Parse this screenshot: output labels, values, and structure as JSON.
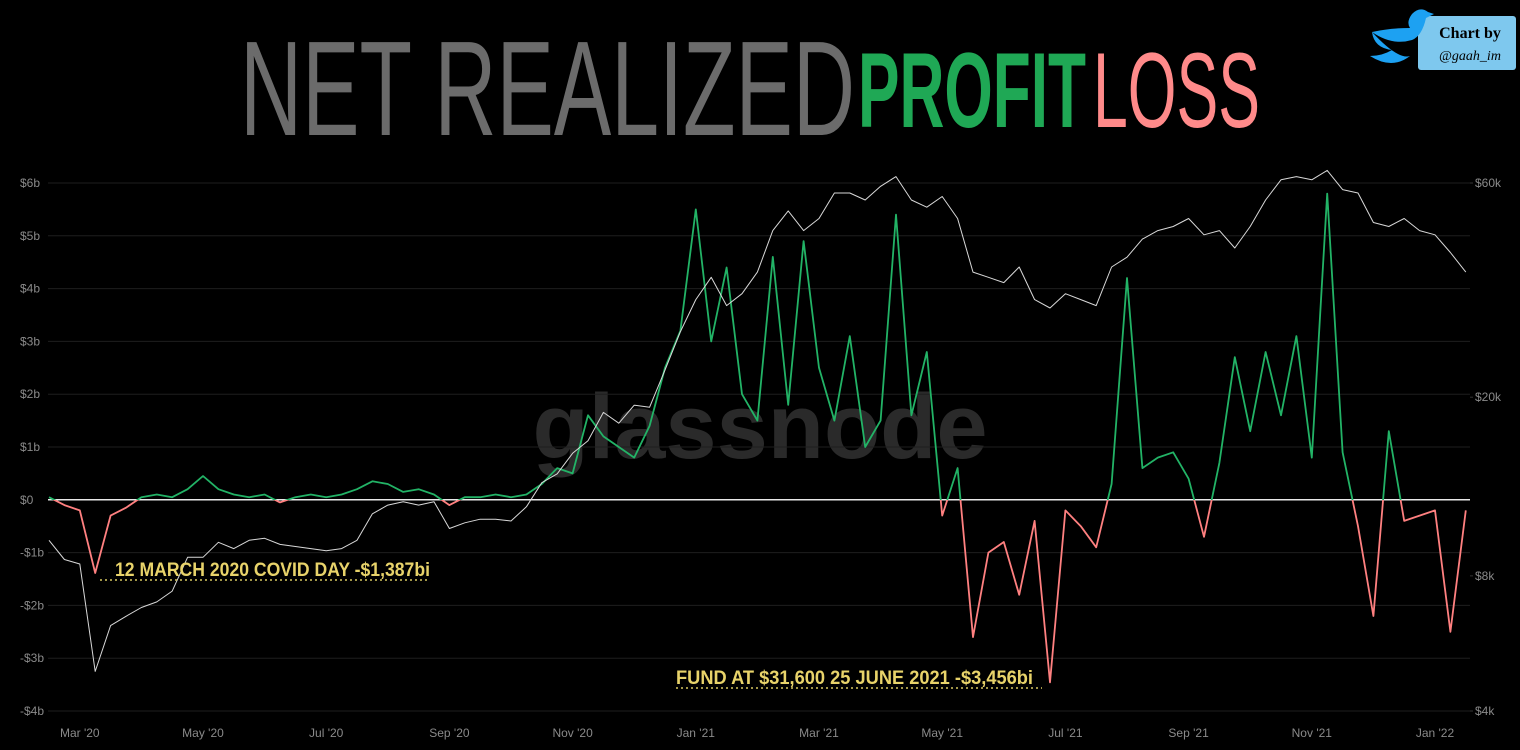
{
  "chart_data": {
    "type": "line",
    "title_parts": [
      "NET REALIZED",
      "PROFIT",
      "LOSS"
    ],
    "badge": [
      "Chart by",
      "@gaah_im"
    ],
    "watermark": "glassnode",
    "annotations": [
      "12 MARCH 2020 COVID DAY  -$1,387bi",
      "FUND AT $31,600 25 JUNE 2021  -$3,456bi"
    ],
    "categories": [
      null,
      null,
      "Mar '20",
      null,
      null,
      null,
      null,
      null,
      null,
      null,
      "May '20",
      null,
      null,
      null,
      null,
      null,
      null,
      null,
      "Jul '20",
      null,
      null,
      null,
      null,
      null,
      null,
      null,
      "Sep '20",
      null,
      null,
      null,
      null,
      null,
      null,
      null,
      "Nov '20",
      null,
      null,
      null,
      null,
      null,
      null,
      null,
      "Jan '21",
      null,
      null,
      null,
      null,
      null,
      null,
      null,
      "Mar '21",
      null,
      null,
      null,
      null,
      null,
      null,
      null,
      "May '21",
      null,
      null,
      null,
      null,
      null,
      null,
      null,
      "Jul '21",
      null,
      null,
      null,
      null,
      null,
      null,
      null,
      "Sep '21",
      null,
      null,
      null,
      null,
      null,
      null,
      null,
      "Nov '21",
      null,
      null,
      null,
      null,
      null,
      null,
      null,
      "Jan '22",
      null,
      null
    ],
    "series": [
      {
        "color": "#22b366",
        "negative_color": "#ff8080",
        "values": [
          0.05,
          -0.1,
          -0.2,
          -1.387,
          -0.3,
          -0.15,
          0.05,
          0.1,
          0.05,
          0.2,
          0.45,
          0.2,
          0.1,
          0.05,
          0.1,
          -0.05,
          0.05,
          0.1,
          0.05,
          0.1,
          0.2,
          0.35,
          0.3,
          0.15,
          0.2,
          0.1,
          -0.1,
          0.05,
          0.05,
          0.1,
          0.05,
          0.1,
          0.3,
          0.6,
          0.5,
          1.6,
          1.2,
          1.0,
          0.8,
          1.4,
          2.5,
          3.2,
          5.5,
          3.0,
          4.4,
          2.0,
          1.5,
          4.6,
          1.8,
          4.9,
          2.5,
          1.5,
          3.1,
          1.0,
          1.5,
          5.4,
          1.6,
          2.8,
          -0.3,
          0.6,
          -2.6,
          -1.0,
          -0.8,
          -1.8,
          -0.4,
          -3.456,
          -0.2,
          -0.5,
          -0.9,
          0.3,
          4.2,
          0.6,
          0.8,
          0.9,
          0.4,
          -0.7,
          0.7,
          2.7,
          1.3,
          2.8,
          1.6,
          3.1,
          0.8,
          5.8,
          0.9,
          -0.5,
          -2.2,
          1.3,
          -0.4,
          -0.3,
          -0.2,
          -2.5,
          -0.2
        ]
      },
      {
        "color": "#d8d8d8",
        "axis": "y2",
        "values": [
          9600,
          8700,
          8500,
          4900,
          6200,
          6500,
          6800,
          7000,
          7400,
          8800,
          8800,
          9500,
          9200,
          9600,
          9700,
          9400,
          9300,
          9200,
          9100,
          9200,
          9600,
          11000,
          11500,
          11700,
          11500,
          11700,
          10200,
          10500,
          10700,
          10700,
          10600,
          11400,
          12900,
          13500,
          15000,
          16000,
          18500,
          17500,
          19200,
          19000,
          23000,
          28000,
          33000,
          37000,
          32000,
          34000,
          38000,
          47000,
          52000,
          47000,
          50000,
          57000,
          57000,
          55000,
          59000,
          62000,
          55000,
          53000,
          56000,
          50000,
          38000,
          37000,
          36000,
          39000,
          33000,
          31600,
          34000,
          33000,
          32000,
          39000,
          41000,
          45000,
          47000,
          48000,
          50000,
          46000,
          47000,
          43000,
          48000,
          55000,
          61000,
          62000,
          61000,
          64000,
          58000,
          57000,
          49000,
          48000,
          50000,
          47000,
          46000,
          42000,
          38000
        ]
      }
    ],
    "ylim": [
      -4,
      6
    ],
    "yticks": [
      {
        "value": -4,
        "label": "-$4b"
      },
      {
        "value": -3,
        "label": "-$3b"
      },
      {
        "value": -2,
        "label": "-$2b"
      },
      {
        "value": -1,
        "label": "-$1b"
      },
      {
        "value": 0,
        "label": "$0"
      },
      {
        "value": 1,
        "label": "$1b"
      },
      {
        "value": 2,
        "label": "$2b"
      },
      {
        "value": 3,
        "label": "$3b"
      },
      {
        "value": 4,
        "label": "$4b"
      },
      {
        "value": 5,
        "label": "$5b"
      },
      {
        "value": 6,
        "label": "$6b"
      }
    ],
    "y2lim": [
      4000,
      60000
    ],
    "y2_log": true,
    "y2ticks": [
      {
        "value": 4000,
        "label": "$4k"
      },
      {
        "value": 8000,
        "label": "$8k"
      },
      {
        "value": 20000,
        "label": "$20k"
      },
      {
        "value": 60000,
        "label": "$60k"
      }
    ],
    "grid": true
  }
}
